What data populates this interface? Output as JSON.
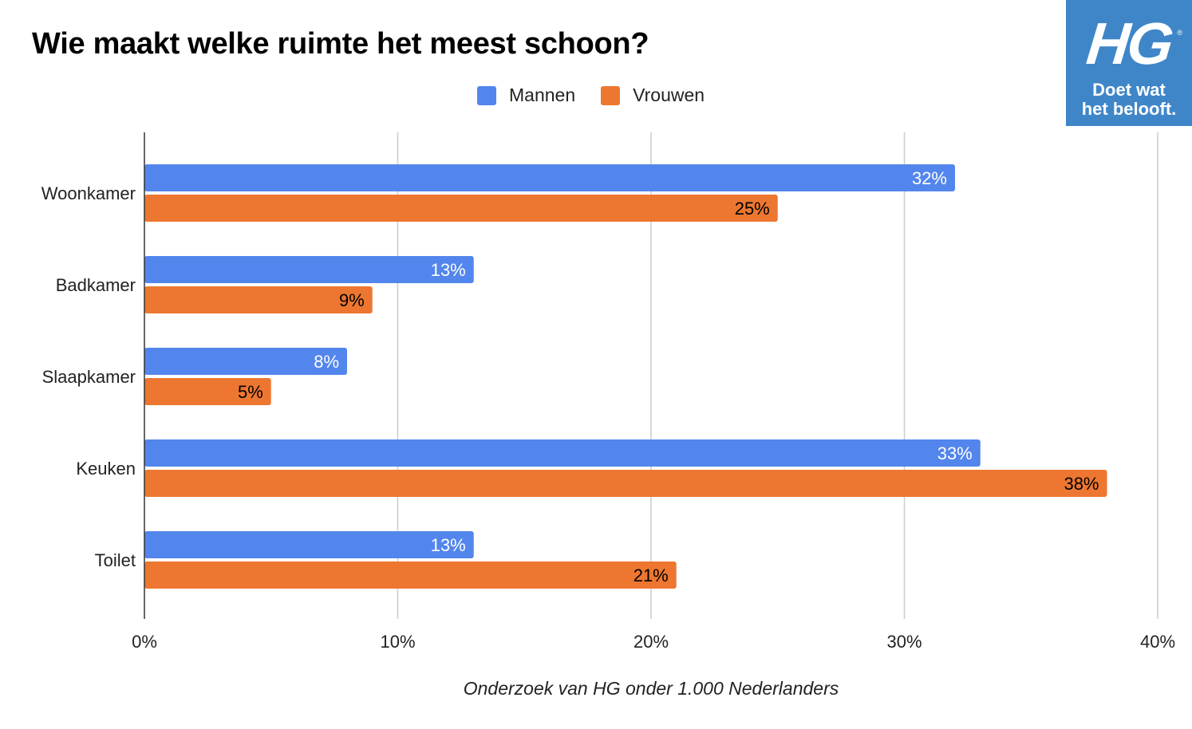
{
  "title": "Wie maakt welke ruimte het meest schoon?",
  "footnote": "Onderzoek van HG onder 1.000 Nederlanders",
  "logo": {
    "brand": "HG",
    "registered": "®",
    "slogan_line1": "Doet wat",
    "slogan_line2": "het belooft.",
    "color": "#3f86c9"
  },
  "chart_data": {
    "type": "bar",
    "orientation": "horizontal",
    "title": "Wie maakt welke ruimte het meest schoon?",
    "categories": [
      "Woonkamer",
      "Badkamer",
      "Slaapkamer",
      "Keuken",
      "Toilet"
    ],
    "series": [
      {
        "name": "Mannen",
        "color": "#5386ec",
        "label_color": "#ffffff",
        "values": [
          32,
          13,
          8,
          33,
          13
        ]
      },
      {
        "name": "Vrouwen",
        "color": "#ed7730",
        "label_color": "#000000",
        "values": [
          25,
          9,
          5,
          38,
          21
        ]
      }
    ],
    "xlim": [
      0,
      40
    ],
    "xticks": [
      0,
      10,
      20,
      30,
      40
    ],
    "tick_format": "%",
    "grid": true,
    "legend_position": "top-center"
  }
}
